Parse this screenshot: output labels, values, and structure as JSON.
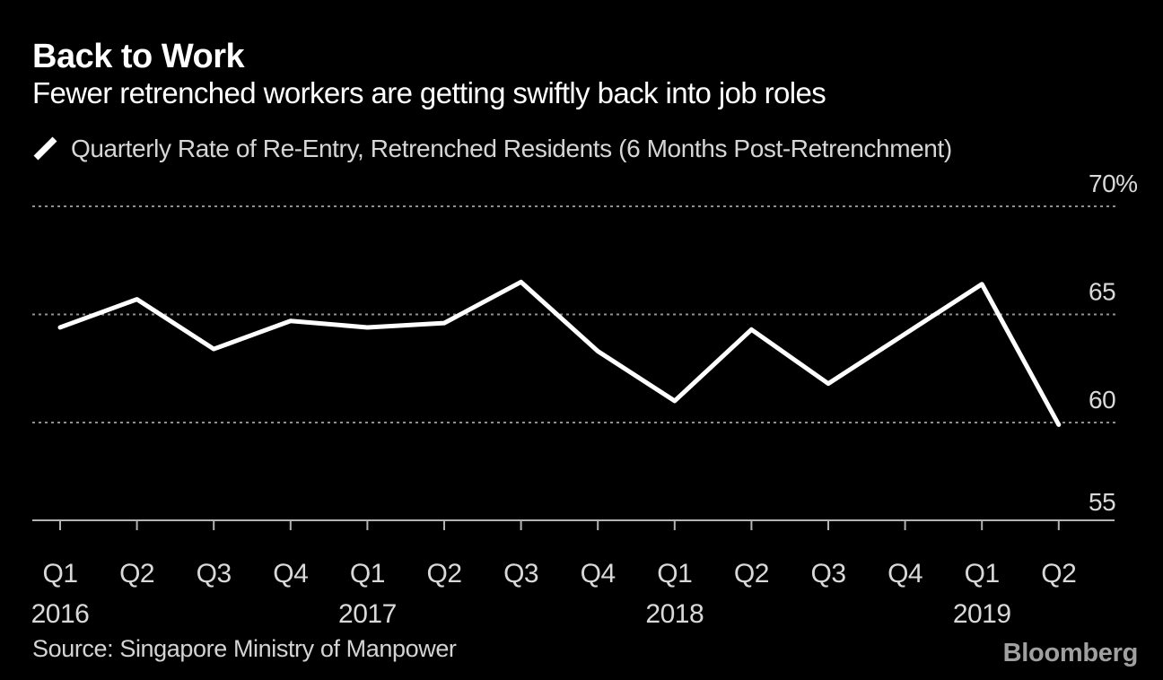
{
  "header": {
    "title": "Back to Work",
    "subtitle": "Fewer retrenched workers are getting swiftly back into job roles"
  },
  "legend": {
    "label": "Quarterly Rate of Re-Entry, Retrenched Residents (6 Months Post-Retrenchment)",
    "color": "#ffffff"
  },
  "chart_data": {
    "type": "line",
    "title": "Back to Work",
    "subtitle": "Fewer retrenched workers are getting swiftly back into job roles",
    "categories": [
      "Q1 2016",
      "Q2 2016",
      "Q3 2016",
      "Q4 2016",
      "Q1 2017",
      "Q2 2017",
      "Q3 2017",
      "Q4 2017",
      "Q1 2018",
      "Q2 2018",
      "Q3 2018",
      "Q4 2018",
      "Q1 2019",
      "Q2 2019"
    ],
    "series": [
      {
        "name": "Quarterly Rate of Re-Entry, Retrenched Residents (6 Months Post-Retrenchment)",
        "values": [
          64.4,
          65.7,
          63.4,
          64.7,
          64.4,
          64.6,
          66.5,
          63.3,
          61.0,
          64.3,
          61.8,
          64.1,
          66.4,
          59.9
        ],
        "color": "#ffffff"
      }
    ],
    "x_tick_labels": [
      "Q1",
      "Q2",
      "Q3",
      "Q4",
      "Q1",
      "Q2",
      "Q3",
      "Q4",
      "Q1",
      "Q2",
      "Q3",
      "Q4",
      "Q1",
      "Q2"
    ],
    "x_year_labels": [
      {
        "index": 0,
        "label": "2016"
      },
      {
        "index": 4,
        "label": "2017"
      },
      {
        "index": 8,
        "label": "2018"
      },
      {
        "index": 12,
        "label": "2019"
      }
    ],
    "y_ticks": [
      {
        "value": 70,
        "label": "70%"
      },
      {
        "value": 65,
        "label": "65"
      },
      {
        "value": 60,
        "label": "60"
      },
      {
        "value": 55,
        "label": "55"
      }
    ],
    "ylim": [
      55,
      70
    ],
    "unit": "%",
    "grid": "horizontal-dotted",
    "legend_position": "top-left",
    "colors": {
      "background": "#000000",
      "line": "#ffffff",
      "gridline": "#8f8f8f",
      "axis": "#b3b3b3",
      "labels": "#d9d9d9"
    }
  },
  "footer": {
    "source": "Source: Singapore Ministry of Manpower",
    "brand": "Bloomberg"
  }
}
